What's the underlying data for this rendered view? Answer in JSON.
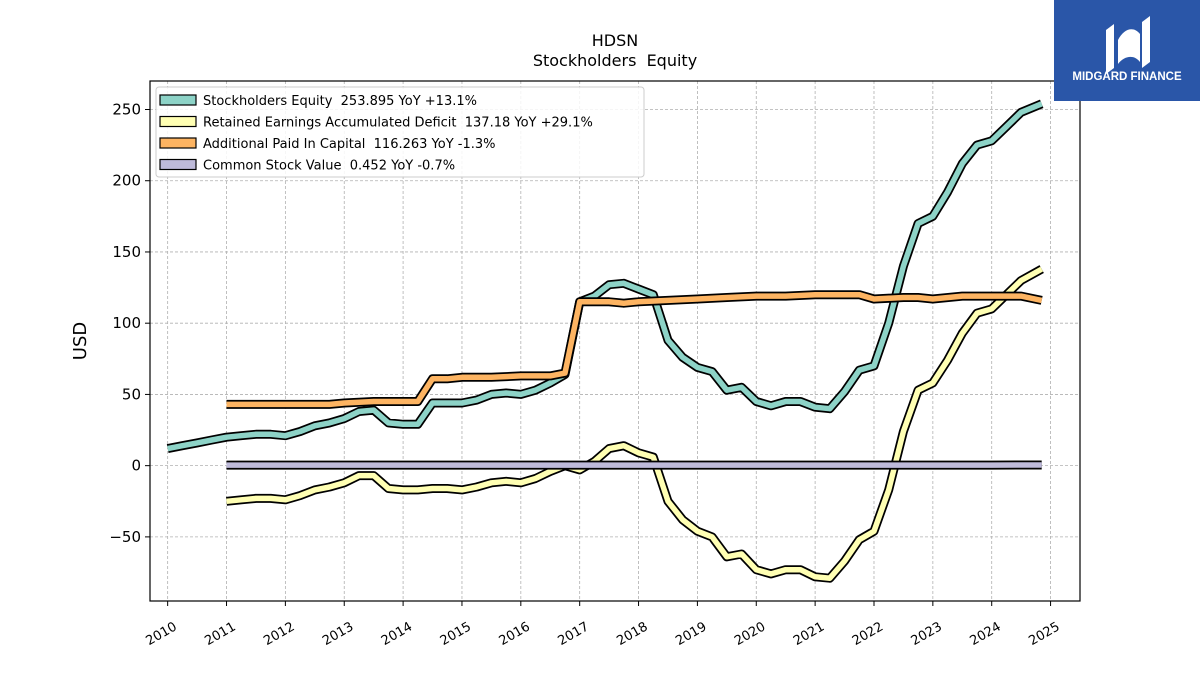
{
  "chart_data": {
    "type": "line",
    "title": "HDSN",
    "subtitle": "Stockholders  Equity",
    "xlabel": "",
    "ylabel": "USD",
    "xlim": [
      2009.7,
      2025.5
    ],
    "ylim": [
      -95,
      270
    ],
    "x_ticks": [
      "2010",
      "2011",
      "2012",
      "2013",
      "2014",
      "2015",
      "2016",
      "2017",
      "2018",
      "2019",
      "2020",
      "2021",
      "2022",
      "2023",
      "2024",
      "2025"
    ],
    "y_ticks": [
      -50,
      0,
      50,
      100,
      150,
      200,
      250
    ],
    "y_tick_labels": [
      "−50",
      "0",
      "50",
      "100",
      "150",
      "200",
      "250"
    ],
    "grid": true,
    "legend_position": "top-left",
    "series": [
      {
        "name": "Stockholders Equity  253.895 YoY +13.1%",
        "color": "#8dd3c7",
        "points": [
          [
            2010.0,
            12
          ],
          [
            2010.25,
            14
          ],
          [
            2010.5,
            16
          ],
          [
            2010.75,
            18
          ],
          [
            2011.0,
            20
          ],
          [
            2011.25,
            21
          ],
          [
            2011.5,
            22
          ],
          [
            2011.75,
            22
          ],
          [
            2012.0,
            21
          ],
          [
            2012.25,
            24
          ],
          [
            2012.5,
            28
          ],
          [
            2012.75,
            30
          ],
          [
            2013.0,
            33
          ],
          [
            2013.25,
            38
          ],
          [
            2013.5,
            39
          ],
          [
            2013.75,
            30
          ],
          [
            2014.0,
            29
          ],
          [
            2014.25,
            29
          ],
          [
            2014.5,
            44
          ],
          [
            2014.75,
            44
          ],
          [
            2015.0,
            44
          ],
          [
            2015.25,
            46
          ],
          [
            2015.5,
            50
          ],
          [
            2015.75,
            51
          ],
          [
            2016.0,
            50
          ],
          [
            2016.25,
            53
          ],
          [
            2016.5,
            58
          ],
          [
            2016.75,
            64
          ],
          [
            2017.0,
            115
          ],
          [
            2017.25,
            119
          ],
          [
            2017.5,
            127
          ],
          [
            2017.75,
            128
          ],
          [
            2018.0,
            124
          ],
          [
            2018.25,
            120
          ],
          [
            2018.5,
            88
          ],
          [
            2018.75,
            76
          ],
          [
            2019.0,
            69
          ],
          [
            2019.25,
            66
          ],
          [
            2019.5,
            53
          ],
          [
            2019.75,
            55
          ],
          [
            2020.0,
            45
          ],
          [
            2020.25,
            42
          ],
          [
            2020.5,
            45
          ],
          [
            2020.75,
            45
          ],
          [
            2021.0,
            41
          ],
          [
            2021.25,
            40
          ],
          [
            2021.5,
            52
          ],
          [
            2021.75,
            67
          ],
          [
            2022.0,
            70
          ],
          [
            2022.25,
            100
          ],
          [
            2022.5,
            140
          ],
          [
            2022.75,
            170
          ],
          [
            2023.0,
            175
          ],
          [
            2023.25,
            192
          ],
          [
            2023.5,
            212
          ],
          [
            2023.75,
            225
          ],
          [
            2024.0,
            228
          ],
          [
            2024.25,
            238
          ],
          [
            2024.5,
            248
          ],
          [
            2024.85,
            254
          ]
        ]
      },
      {
        "name": "Retained Earnings Accumulated Deficit  137.18 YoY +29.1%",
        "color": "#ffffb3",
        "points": [
          [
            2011.0,
            -25
          ],
          [
            2011.25,
            -24
          ],
          [
            2011.5,
            -23
          ],
          [
            2011.75,
            -23
          ],
          [
            2012.0,
            -24
          ],
          [
            2012.25,
            -21
          ],
          [
            2012.5,
            -17
          ],
          [
            2012.75,
            -15
          ],
          [
            2013.0,
            -12
          ],
          [
            2013.25,
            -7
          ],
          [
            2013.5,
            -7
          ],
          [
            2013.75,
            -16
          ],
          [
            2014.0,
            -17
          ],
          [
            2014.25,
            -17
          ],
          [
            2014.5,
            -16
          ],
          [
            2014.75,
            -16
          ],
          [
            2015.0,
            -17
          ],
          [
            2015.25,
            -15
          ],
          [
            2015.5,
            -12
          ],
          [
            2015.75,
            -11
          ],
          [
            2016.0,
            -12
          ],
          [
            2016.25,
            -9
          ],
          [
            2016.5,
            -4
          ],
          [
            2016.75,
            0
          ],
          [
            2017.0,
            -3
          ],
          [
            2017.25,
            3
          ],
          [
            2017.5,
            12
          ],
          [
            2017.75,
            14
          ],
          [
            2018.0,
            9
          ],
          [
            2018.25,
            6
          ],
          [
            2018.5,
            -25
          ],
          [
            2018.75,
            -38
          ],
          [
            2019.0,
            -46
          ],
          [
            2019.25,
            -50
          ],
          [
            2019.5,
            -64
          ],
          [
            2019.75,
            -62
          ],
          [
            2020.0,
            -73
          ],
          [
            2020.25,
            -76
          ],
          [
            2020.5,
            -73
          ],
          [
            2020.75,
            -73
          ],
          [
            2021.0,
            -78
          ],
          [
            2021.25,
            -79
          ],
          [
            2021.5,
            -67
          ],
          [
            2021.75,
            -52
          ],
          [
            2022.0,
            -46
          ],
          [
            2022.25,
            -17
          ],
          [
            2022.5,
            24
          ],
          [
            2022.75,
            53
          ],
          [
            2023.0,
            58
          ],
          [
            2023.25,
            74
          ],
          [
            2023.5,
            93
          ],
          [
            2023.75,
            107
          ],
          [
            2024.0,
            110
          ],
          [
            2024.25,
            120
          ],
          [
            2024.5,
            130
          ],
          [
            2024.85,
            138
          ]
        ]
      },
      {
        "name": "Additional Paid In Capital  116.263 YoY -1.3%",
        "color": "#fdb462",
        "points": [
          [
            2011.0,
            43
          ],
          [
            2011.5,
            43
          ],
          [
            2012.0,
            43
          ],
          [
            2012.75,
            43
          ],
          [
            2013.0,
            44
          ],
          [
            2013.5,
            45
          ],
          [
            2014.0,
            45
          ],
          [
            2014.25,
            45
          ],
          [
            2014.5,
            61
          ],
          [
            2014.75,
            61
          ],
          [
            2015.0,
            62
          ],
          [
            2015.5,
            62
          ],
          [
            2016.0,
            63
          ],
          [
            2016.5,
            63
          ],
          [
            2016.75,
            65
          ],
          [
            2017.0,
            115
          ],
          [
            2017.25,
            115
          ],
          [
            2017.5,
            115
          ],
          [
            2017.75,
            114
          ],
          [
            2018.0,
            115
          ],
          [
            2018.5,
            116
          ],
          [
            2019.0,
            117
          ],
          [
            2019.5,
            118
          ],
          [
            2020.0,
            119
          ],
          [
            2020.5,
            119
          ],
          [
            2021.0,
            120
          ],
          [
            2021.5,
            120
          ],
          [
            2021.75,
            120
          ],
          [
            2022.0,
            117
          ],
          [
            2022.5,
            118
          ],
          [
            2022.75,
            118
          ],
          [
            2023.0,
            117
          ],
          [
            2023.5,
            119
          ],
          [
            2024.0,
            119
          ],
          [
            2024.5,
            119
          ],
          [
            2024.85,
            116
          ]
        ]
      },
      {
        "name": "Common Stock Value  0.452 YoY -0.7%",
        "color": "#bebada",
        "points": [
          [
            2011.0,
            0.4
          ],
          [
            2012.0,
            0.4
          ],
          [
            2013.0,
            0.4
          ],
          [
            2014.0,
            0.4
          ],
          [
            2015.0,
            0.4
          ],
          [
            2016.0,
            0.4
          ],
          [
            2017.0,
            0.4
          ],
          [
            2018.0,
            0.4
          ],
          [
            2019.0,
            0.4
          ],
          [
            2020.0,
            0.4
          ],
          [
            2021.0,
            0.4
          ],
          [
            2022.0,
            0.4
          ],
          [
            2023.0,
            0.4
          ],
          [
            2024.0,
            0.4
          ],
          [
            2024.85,
            0.45
          ]
        ]
      }
    ]
  },
  "logo": {
    "text": "MIDGARD FINANCE",
    "bg_color": "#2a56a8"
  }
}
